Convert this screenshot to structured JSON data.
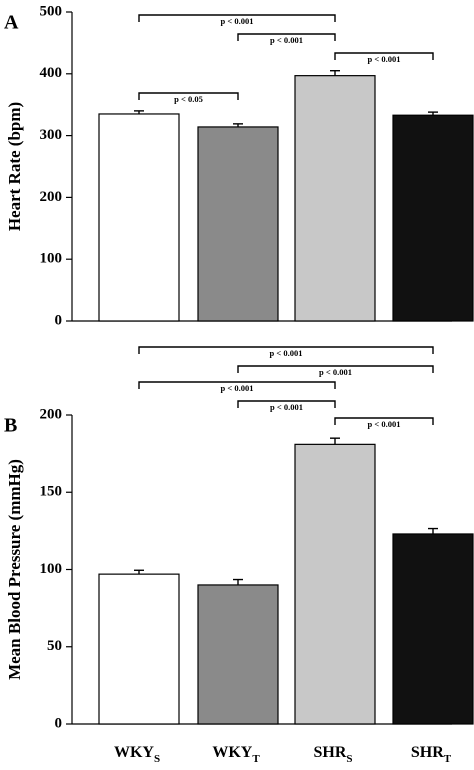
{
  "chart_data": [
    {
      "type": "bar",
      "panel": "A",
      "ylabel": "Heart Rate (bpm)",
      "categories": [
        "WKY_S",
        "WKY_T",
        "SHR_S",
        "SHR_T"
      ],
      "values": [
        335,
        314,
        397,
        333
      ],
      "errors": [
        5,
        5,
        8,
        5
      ],
      "colors": [
        "#ffffff",
        "#8a8a8a",
        "#c8c8c8",
        "#111111"
      ],
      "ylim": [
        0,
        500
      ],
      "yticks": [
        0,
        100,
        200,
        300,
        400,
        500
      ],
      "comparisons": [
        {
          "from": 0,
          "to": 1,
          "label": "p < 0.05"
        },
        {
          "from": 0,
          "to": 2,
          "label": "p < 0.001"
        },
        {
          "from": 1,
          "to": 2,
          "label": "p < 0.001"
        },
        {
          "from": 2,
          "to": 3,
          "label": "p < 0.001"
        }
      ]
    },
    {
      "type": "bar",
      "panel": "B",
      "ylabel": "Mean Blood Pressure (mmHg)",
      "categories": [
        "WKY_S",
        "WKY_T",
        "SHR_S",
        "SHR_T"
      ],
      "values": [
        97,
        90,
        181,
        123
      ],
      "errors": [
        2.5,
        3.5,
        4,
        3.5
      ],
      "colors": [
        "#ffffff",
        "#8a8a8a",
        "#c8c8c8",
        "#111111"
      ],
      "ylim": [
        0,
        200
      ],
      "yticks": [
        0,
        50,
        100,
        150,
        200
      ],
      "comparisons": [
        {
          "from": 0,
          "to": 3,
          "label": "p < 0.001"
        },
        {
          "from": 1,
          "to": 3,
          "label": "p < 0.001"
        },
        {
          "from": 0,
          "to": 2,
          "label": "p < 0.001"
        },
        {
          "from": 1,
          "to": 2,
          "label": "p < 0.001"
        },
        {
          "from": 2,
          "to": 3,
          "label": "p < 0.001"
        }
      ]
    }
  ],
  "category_labels": [
    {
      "main": "WKY",
      "sub": "S"
    },
    {
      "main": "WKY",
      "sub": "T"
    },
    {
      "main": "SHR",
      "sub": "S"
    },
    {
      "main": "SHR",
      "sub": "T"
    }
  ]
}
